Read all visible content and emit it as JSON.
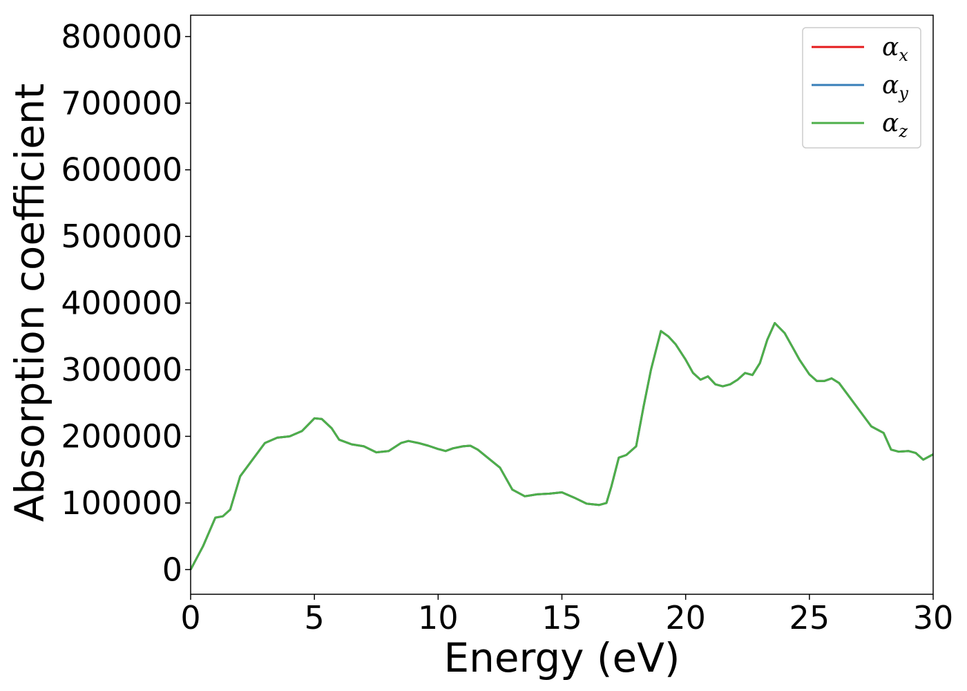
{
  "chart_data": {
    "type": "line",
    "title": "",
    "xlabel": "Energy (eV)",
    "ylabel": "Absorption coefficient",
    "xlim": [
      0,
      30
    ],
    "ylim": [
      -37000,
      832000
    ],
    "xticks": [
      0,
      5,
      10,
      15,
      20,
      25,
      30
    ],
    "yticks": [
      0,
      100000,
      200000,
      300000,
      400000,
      500000,
      600000,
      700000,
      800000
    ],
    "grid": false,
    "legend_position": "top-right",
    "colors": {
      "alpha_x": "#e41a1c",
      "alpha_y": "#377eb8",
      "alpha_z": "#4daf4a"
    },
    "series": [
      {
        "name": "α_x",
        "symbol": "α",
        "subscript": "x",
        "color": "#e41a1c"
      },
      {
        "name": "α_y",
        "symbol": "α",
        "subscript": "y",
        "color": "#377eb8"
      },
      {
        "name": "α_z",
        "symbol": "α",
        "subscript": "z",
        "color": "#4daf4a"
      }
    ],
    "x": [
      0,
      0.5,
      1.0,
      1.3,
      1.6,
      2.0,
      2.5,
      3.0,
      3.5,
      4.0,
      4.5,
      5.0,
      5.3,
      5.7,
      6.0,
      6.5,
      7.0,
      7.5,
      8.0,
      8.5,
      8.8,
      9.2,
      9.6,
      10.0,
      10.3,
      10.6,
      11.0,
      11.3,
      11.6,
      12.0,
      12.5,
      13.0,
      13.5,
      14.0,
      14.5,
      15.0,
      15.5,
      16.0,
      16.5,
      16.8,
      17.0,
      17.3,
      17.6,
      18.0,
      18.3,
      18.6,
      19.0,
      19.3,
      19.6,
      20.0,
      20.3,
      20.6,
      20.9,
      21.2,
      21.5,
      21.8,
      22.1,
      22.4,
      22.7,
      23.0,
      23.3,
      23.6,
      24.0,
      24.3,
      24.6,
      25.0,
      25.3,
      25.6,
      25.9,
      26.2,
      26.5,
      27.0,
      27.5,
      28.0,
      28.3,
      28.6,
      29.0,
      29.3,
      29.6,
      30.0
    ],
    "y": [
      0,
      35000,
      78000,
      80000,
      90000,
      140000,
      165000,
      190000,
      198000,
      200000,
      208000,
      227000,
      226000,
      212000,
      195000,
      188000,
      185000,
      176000,
      178000,
      190000,
      193000,
      190000,
      186000,
      181000,
      178000,
      182000,
      185000,
      186000,
      180000,
      168000,
      153000,
      120000,
      110000,
      113000,
      114000,
      116000,
      108000,
      99000,
      97000,
      100000,
      125000,
      168000,
      172000,
      185000,
      245000,
      300000,
      358000,
      350000,
      338000,
      315000,
      295000,
      285000,
      290000,
      278000,
      275000,
      278000,
      285000,
      295000,
      292000,
      310000,
      345000,
      370000,
      355000,
      335000,
      315000,
      293000,
      283000,
      283000,
      287000,
      280000,
      265000,
      240000,
      215000,
      205000,
      180000,
      177000,
      178000,
      175000,
      165000,
      173000
    ]
  }
}
